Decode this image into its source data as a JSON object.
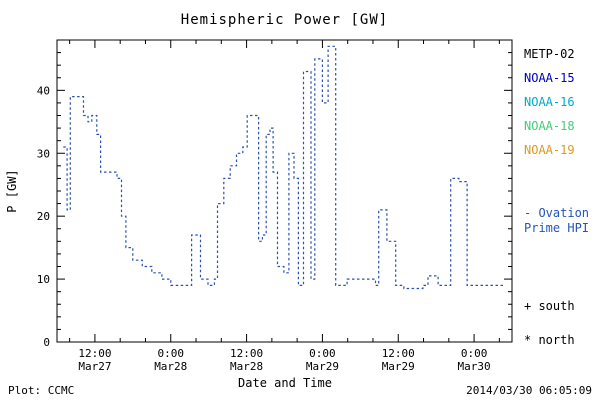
{
  "title": "Hemispheric Power [GW]",
  "xlabel": "Date and Time",
  "ylabel": "P [GW]",
  "footer_left": "Plot: CCMC",
  "footer_right": "2014/03/30 06:05:09",
  "legend": {
    "satellites": [
      {
        "label": "METP-02",
        "color": "#000000"
      },
      {
        "label": "NOAA-15",
        "color": "#0000bb"
      },
      {
        "label": "NOAA-16",
        "color": "#00aacc"
      },
      {
        "label": "NOAA-18",
        "color": "#44cc77"
      },
      {
        "label": "NOAA-19",
        "color": "#dd9922"
      }
    ],
    "series_note": {
      "label": "- Ovation Prime HPI",
      "color": "#2255bb"
    },
    "markers": [
      {
        "label": "+ south",
        "color": "#000000"
      },
      {
        "label": "* north",
        "color": "#000000"
      }
    ]
  },
  "chart_data": {
    "type": "line",
    "step": true,
    "line_style": "dashed",
    "line_color": "#2b4fb4",
    "title": "Hemispheric Power [GW]",
    "xlabel": "Date and Time",
    "ylabel": "P [GW]",
    "x_unit": "hours since 2014-03-27 00:00 UT",
    "xlim": [
      6,
      78
    ],
    "ylim": [
      0,
      48
    ],
    "grid": false,
    "yticks": [
      0,
      10,
      20,
      30,
      40
    ],
    "y_minor_step": 2,
    "x_minor_step": 4,
    "xticks": [
      {
        "t": 12,
        "top": "12:00",
        "bottom": "Mar27"
      },
      {
        "t": 24,
        "top": "0:00",
        "bottom": "Mar28"
      },
      {
        "t": 36,
        "top": "12:00",
        "bottom": "Mar28"
      },
      {
        "t": 48,
        "top": "0:00",
        "bottom": "Mar29"
      },
      {
        "t": 60,
        "top": "12:00",
        "bottom": "Mar29"
      },
      {
        "t": 72,
        "top": "0:00",
        "bottom": "Mar30"
      }
    ],
    "points": [
      [
        7.0,
        31
      ],
      [
        7.6,
        21
      ],
      [
        8.1,
        39
      ],
      [
        9.7,
        39
      ],
      [
        10.2,
        36
      ],
      [
        10.9,
        35
      ],
      [
        11.5,
        36
      ],
      [
        12.3,
        33
      ],
      [
        12.9,
        27
      ],
      [
        14.9,
        27
      ],
      [
        15.5,
        26
      ],
      [
        16.2,
        20
      ],
      [
        16.9,
        15
      ],
      [
        18.0,
        13
      ],
      [
        19.5,
        12
      ],
      [
        21.0,
        11
      ],
      [
        22.6,
        10
      ],
      [
        24.0,
        9
      ],
      [
        26.9,
        9
      ],
      [
        27.3,
        17
      ],
      [
        28.2,
        17
      ],
      [
        28.7,
        10
      ],
      [
        29.9,
        9
      ],
      [
        30.9,
        10
      ],
      [
        31.4,
        22
      ],
      [
        32.4,
        26
      ],
      [
        33.4,
        28
      ],
      [
        34.4,
        30
      ],
      [
        35.4,
        31
      ],
      [
        36.1,
        36
      ],
      [
        37.4,
        36
      ],
      [
        37.9,
        16
      ],
      [
        38.5,
        17
      ],
      [
        39.1,
        33
      ],
      [
        39.7,
        34
      ],
      [
        40.2,
        27
      ],
      [
        40.9,
        12
      ],
      [
        41.9,
        11
      ],
      [
        42.7,
        30
      ],
      [
        43.5,
        26
      ],
      [
        44.2,
        9
      ],
      [
        45.0,
        43
      ],
      [
        45.9,
        43
      ],
      [
        46.2,
        10
      ],
      [
        46.8,
        45
      ],
      [
        47.7,
        45
      ],
      [
        48.0,
        38
      ],
      [
        48.5,
        38
      ],
      [
        48.9,
        47
      ],
      [
        49.8,
        47
      ],
      [
        50.1,
        9
      ],
      [
        51.4,
        9
      ],
      [
        51.9,
        10
      ],
      [
        53.9,
        10
      ],
      [
        56.4,
        9
      ],
      [
        56.9,
        21
      ],
      [
        57.9,
        21
      ],
      [
        58.2,
        16
      ],
      [
        59.2,
        16
      ],
      [
        59.6,
        9
      ],
      [
        60.9,
        8.5
      ],
      [
        62.9,
        8.5
      ],
      [
        63.9,
        9
      ],
      [
        64.7,
        10.5
      ],
      [
        65.9,
        10.5
      ],
      [
        66.3,
        9
      ],
      [
        67.9,
        9
      ],
      [
        68.3,
        26
      ],
      [
        69.3,
        26
      ],
      [
        69.6,
        25.5
      ],
      [
        70.5,
        25.5
      ],
      [
        70.9,
        9
      ],
      [
        76.8,
        9
      ]
    ]
  }
}
